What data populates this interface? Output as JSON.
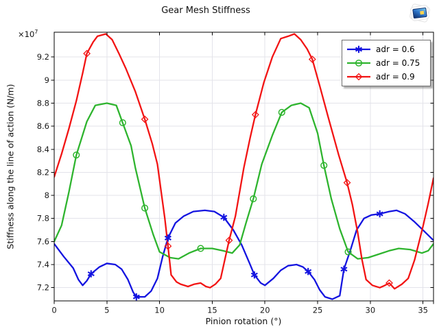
{
  "window": {
    "background": "#ffffff"
  },
  "chart_data": {
    "type": "line",
    "title": "Gear Mesh Stiffness",
    "xlabel": "Pinion rotation (°)",
    "ylabel": "Stiffness along the line of action (N/m)",
    "y_axis_multiplier": {
      "base": "×10",
      "exponent": "7"
    },
    "y_unit_scale": 10000000,
    "xlim": [
      0,
      36
    ],
    "ylim": [
      7.085,
      9.415
    ],
    "xticks": [
      0,
      5,
      10,
      15,
      20,
      25,
      30,
      35
    ],
    "yticks": [
      7.2,
      7.4,
      7.6,
      7.8,
      8,
      8.2,
      8.4,
      8.6,
      8.8,
      9,
      9.2
    ],
    "grid": true,
    "legend_position": "top-right",
    "series": [
      {
        "id": "adr-0-6",
        "name": "adr = 0.6",
        "color": "#1414e0",
        "marker": "asterisk",
        "points": [
          [
            0,
            7.58
          ],
          [
            0.9,
            7.47
          ],
          [
            1.8,
            7.37
          ],
          [
            2.3,
            7.27
          ],
          [
            2.7,
            7.22
          ],
          [
            3.1,
            7.26
          ],
          [
            3.5,
            7.32
          ],
          [
            4.3,
            7.38
          ],
          [
            5.0,
            7.41
          ],
          [
            5.8,
            7.4
          ],
          [
            6.4,
            7.36
          ],
          [
            7.0,
            7.27
          ],
          [
            7.5,
            7.16
          ],
          [
            7.8,
            7.12
          ],
          [
            8.6,
            7.12
          ],
          [
            9.2,
            7.17
          ],
          [
            9.8,
            7.28
          ],
          [
            10.3,
            7.47
          ],
          [
            10.8,
            7.63
          ],
          [
            11.5,
            7.76
          ],
          [
            12.3,
            7.82
          ],
          [
            13.2,
            7.86
          ],
          [
            14.3,
            7.87
          ],
          [
            15.2,
            7.86
          ],
          [
            16.1,
            7.81
          ],
          [
            17.0,
            7.7
          ],
          [
            17.8,
            7.57
          ],
          [
            18.5,
            7.42
          ],
          [
            19.0,
            7.31
          ],
          [
            19.6,
            7.24
          ],
          [
            20.0,
            7.22
          ],
          [
            20.8,
            7.28
          ],
          [
            21.5,
            7.35
          ],
          [
            22.2,
            7.39
          ],
          [
            23.0,
            7.4
          ],
          [
            23.6,
            7.38
          ],
          [
            24.1,
            7.34
          ],
          [
            24.7,
            7.27
          ],
          [
            25.2,
            7.18
          ],
          [
            25.7,
            7.12
          ],
          [
            26.4,
            7.1
          ],
          [
            27.1,
            7.13
          ],
          [
            27.5,
            7.36
          ],
          [
            28.1,
            7.52
          ],
          [
            28.7,
            7.7
          ],
          [
            29.4,
            7.8
          ],
          [
            30.1,
            7.83
          ],
          [
            30.9,
            7.84
          ],
          [
            31.8,
            7.86
          ],
          [
            32.5,
            7.87
          ],
          [
            33.3,
            7.84
          ],
          [
            34.2,
            7.77
          ],
          [
            35.1,
            7.69
          ],
          [
            36,
            7.61
          ]
        ],
        "marker_points": [
          [
            3.5,
            7.32
          ],
          [
            7.8,
            7.12
          ],
          [
            10.8,
            7.63
          ],
          [
            16.1,
            7.81
          ],
          [
            19.0,
            7.31
          ],
          [
            24.1,
            7.34
          ],
          [
            27.5,
            7.36
          ],
          [
            30.9,
            7.84
          ]
        ]
      },
      {
        "id": "adr-0-75",
        "name": "adr = 0.75",
        "color": "#2eb42e",
        "marker": "circle",
        "points": [
          [
            0,
            7.6
          ],
          [
            0.7,
            7.74
          ],
          [
            1.4,
            8.03
          ],
          [
            2.1,
            8.35
          ],
          [
            3.1,
            8.64
          ],
          [
            3.9,
            8.78
          ],
          [
            5.0,
            8.8
          ],
          [
            5.9,
            8.78
          ],
          [
            6.5,
            8.63
          ],
          [
            7.3,
            8.43
          ],
          [
            7.7,
            8.24
          ],
          [
            8.6,
            7.89
          ],
          [
            9.4,
            7.66
          ],
          [
            10.0,
            7.51
          ],
          [
            11.0,
            7.46
          ],
          [
            11.8,
            7.45
          ],
          [
            12.8,
            7.5
          ],
          [
            13.9,
            7.54
          ],
          [
            15.0,
            7.54
          ],
          [
            16.0,
            7.52
          ],
          [
            16.9,
            7.5
          ],
          [
            17.6,
            7.57
          ],
          [
            18.2,
            7.76
          ],
          [
            18.9,
            7.97
          ],
          [
            19.7,
            8.27
          ],
          [
            20.7,
            8.52
          ],
          [
            21.6,
            8.72
          ],
          [
            22.5,
            8.78
          ],
          [
            23.4,
            8.8
          ],
          [
            24.2,
            8.76
          ],
          [
            25.0,
            8.54
          ],
          [
            25.6,
            8.26
          ],
          [
            26.3,
            7.97
          ],
          [
            27.1,
            7.71
          ],
          [
            27.9,
            7.51
          ],
          [
            28.8,
            7.45
          ],
          [
            29.8,
            7.46
          ],
          [
            30.8,
            7.49
          ],
          [
            31.8,
            7.52
          ],
          [
            32.7,
            7.54
          ],
          [
            33.8,
            7.53
          ],
          [
            34.9,
            7.5
          ],
          [
            35.5,
            7.52
          ],
          [
            36,
            7.58
          ]
        ],
        "marker_points": [
          [
            2.1,
            8.35
          ],
          [
            6.5,
            8.63
          ],
          [
            8.6,
            7.89
          ],
          [
            13.9,
            7.54
          ],
          [
            18.9,
            7.97
          ],
          [
            21.6,
            8.72
          ],
          [
            25.6,
            8.26
          ],
          [
            27.9,
            7.51
          ]
        ]
      },
      {
        "id": "adr-0-9",
        "name": "adr = 0.9",
        "color": "#f21414",
        "marker": "diamond",
        "points": [
          [
            0,
            8.16
          ],
          [
            0.7,
            8.36
          ],
          [
            1.4,
            8.58
          ],
          [
            2.1,
            8.82
          ],
          [
            2.7,
            9.06
          ],
          [
            3.1,
            9.23
          ],
          [
            3.7,
            9.33
          ],
          [
            4.1,
            9.38
          ],
          [
            4.9,
            9.4
          ],
          [
            5.5,
            9.35
          ],
          [
            6.2,
            9.22
          ],
          [
            6.8,
            9.1
          ],
          [
            7.7,
            8.9
          ],
          [
            8.6,
            8.66
          ],
          [
            9.3,
            8.45
          ],
          [
            9.8,
            8.27
          ],
          [
            10.2,
            8.0
          ],
          [
            10.5,
            7.8
          ],
          [
            10.8,
            7.56
          ],
          [
            11.1,
            7.31
          ],
          [
            11.6,
            7.25
          ],
          [
            12.0,
            7.23
          ],
          [
            12.7,
            7.21
          ],
          [
            13.3,
            7.23
          ],
          [
            13.9,
            7.24
          ],
          [
            14.4,
            7.21
          ],
          [
            14.8,
            7.2
          ],
          [
            15.3,
            7.23
          ],
          [
            15.8,
            7.28
          ],
          [
            16.6,
            7.61
          ],
          [
            17.2,
            7.82
          ],
          [
            18.0,
            8.24
          ],
          [
            18.6,
            8.5
          ],
          [
            19.1,
            8.7
          ],
          [
            19.9,
            8.98
          ],
          [
            20.7,
            9.2
          ],
          [
            21.5,
            9.36
          ],
          [
            22.2,
            9.38
          ],
          [
            22.8,
            9.4
          ],
          [
            23.4,
            9.35
          ],
          [
            24.0,
            9.27
          ],
          [
            24.5,
            9.18
          ],
          [
            25.2,
            8.95
          ],
          [
            26.0,
            8.68
          ],
          [
            27.0,
            8.35
          ],
          [
            27.8,
            8.11
          ],
          [
            28.3,
            7.92
          ],
          [
            28.8,
            7.68
          ],
          [
            29.2,
            7.45
          ],
          [
            29.6,
            7.27
          ],
          [
            30.2,
            7.22
          ],
          [
            30.9,
            7.2
          ],
          [
            31.4,
            7.22
          ],
          [
            31.8,
            7.24
          ],
          [
            32.3,
            7.19
          ],
          [
            33.0,
            7.23
          ],
          [
            33.6,
            7.28
          ],
          [
            34.2,
            7.44
          ],
          [
            35.0,
            7.73
          ],
          [
            35.5,
            7.93
          ],
          [
            36,
            8.15
          ]
        ],
        "marker_points": [
          [
            3.1,
            9.23
          ],
          [
            8.6,
            8.66
          ],
          [
            10.8,
            7.56
          ],
          [
            16.6,
            7.61
          ],
          [
            19.1,
            8.7
          ],
          [
            24.5,
            9.18
          ],
          [
            27.8,
            8.11
          ],
          [
            31.8,
            7.24
          ]
        ]
      }
    ]
  },
  "colors": {
    "grid": "#e3e3ea",
    "axis": "#000000",
    "tick_label": "#1a1a1a"
  },
  "branding": {
    "icon": "comsol-flare-icon",
    "screen_gradient": [
      "#0a2a66",
      "#2f74c8",
      "#7fd0f0"
    ],
    "screen_border": "#12336e",
    "accent": "#ffd24d",
    "flare": "#ffffff",
    "flare_edge": "#e4e4e4"
  }
}
